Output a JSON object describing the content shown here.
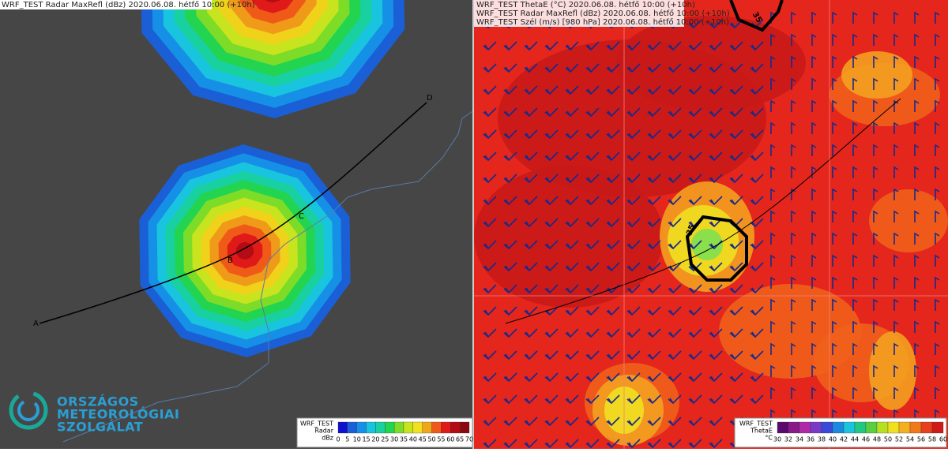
{
  "left_panel": {
    "title": "WRF_TEST Radar MaxRefl (dBz) 2020.06.08. hétfő 10:00 (+10h)",
    "points": [
      "A",
      "B",
      "C",
      "D"
    ],
    "legend": {
      "lines": [
        "WRF_TEST",
        "Radar",
        "dBz"
      ],
      "ticks": [
        0,
        5,
        10,
        15,
        20,
        25,
        30,
        35,
        40,
        45,
        50,
        55,
        60,
        65,
        70
      ]
    }
  },
  "right_panel": {
    "titles": [
      "WRF_TEST ThetaE (°C) 2020.06.08. hétfő 10:00 (+10h)",
      "WRF_TEST Radar MaxRefl (dBz) 2020.06.08. hétfő 10:00 (+10h)",
      "WRF_TEST Szél (m/s) [980 hPa] 2020.06.08. hétfő 10:00 (+10h)"
    ],
    "contour_labels": [
      "35",
      "35"
    ],
    "legend": {
      "lines": [
        "WRF_TEST",
        "ThetaE",
        "°C"
      ],
      "ticks": [
        30,
        32,
        34,
        36,
        38,
        40,
        42,
        44,
        46,
        48,
        50,
        52,
        54,
        56,
        58,
        60
      ]
    }
  },
  "logo": {
    "lines": [
      "ORSZÁGOS",
      "METEOROLÓGIAI",
      "SZOLGÁLAT"
    ]
  }
}
